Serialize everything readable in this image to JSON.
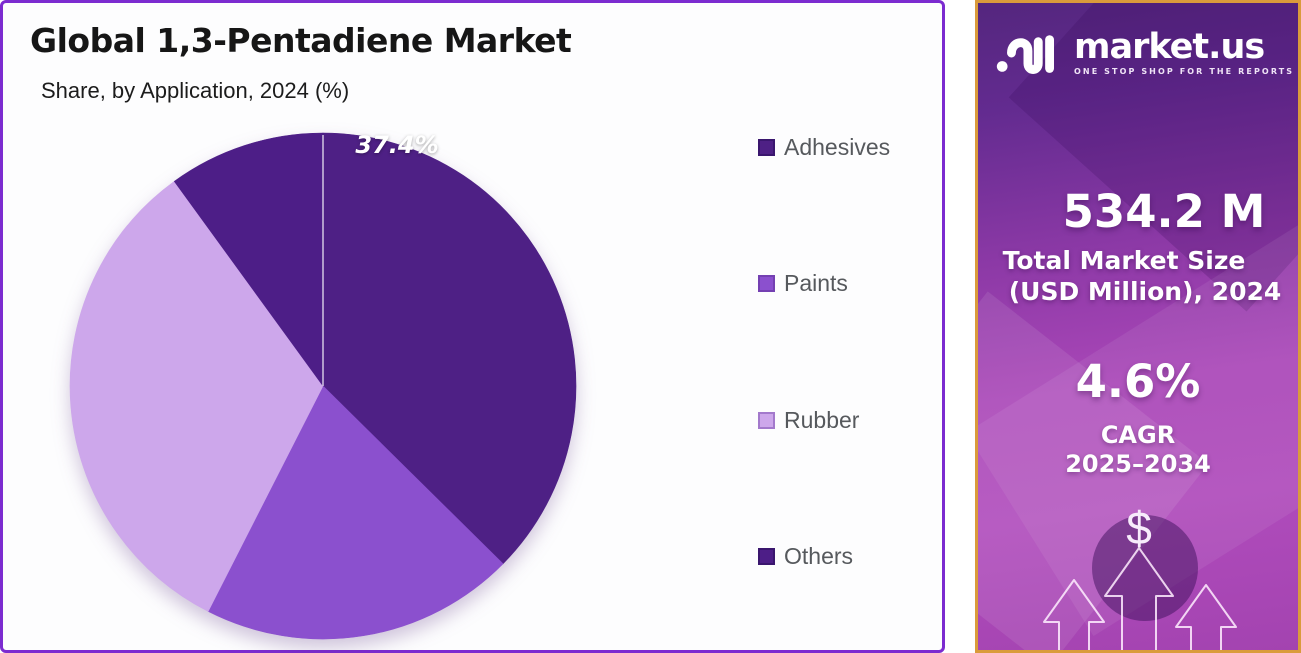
{
  "card": {
    "title": "Global 1,3-Pentadiene Market",
    "subtitle": "Share, by Application, 2024 (%)"
  },
  "chart_data": {
    "type": "pie",
    "title": "Global 1,3-Pentadiene Market",
    "subtitle": "Share, by Application, 2024 (%)",
    "categories": [
      "Adhesives",
      "Paints",
      "Rubber",
      "Others"
    ],
    "values": [
      37.4,
      20.1,
      32.5,
      10.0
    ],
    "unit": "%",
    "labels_shown": [
      "37.4%",
      "",
      "",
      ""
    ],
    "data_label": "37.4%",
    "colors": [
      "#4E2085",
      "#8B50CE",
      "#CDA7EB",
      "#4D1E87"
    ],
    "swatch_borders": [
      "#3A166E",
      "#7440B2",
      "#A379CC",
      "#3A166E"
    ],
    "start_angle_deg": 0,
    "direction": "clockwise",
    "legend_position": "right",
    "grid": "off"
  },
  "panel": {
    "brand": "market.us",
    "tagline": "ONE STOP SHOP FOR THE REPORTS",
    "market_size": {
      "value": "534.2 M",
      "label_line1": "Total Market Size",
      "label_line2": "(USD Million), 2024"
    },
    "cagr": {
      "value": "4.6%",
      "label_line1": "CAGR",
      "label_line2": "2025–2034"
    },
    "dollar_symbol": "$",
    "colors": {
      "border_gold": "#DA9B3B",
      "gradient_top": "#54267E",
      "gradient_bottom": "#A343B0"
    }
  },
  "colors": {
    "card_border": "#7C2BD0",
    "title_text": "#161616",
    "legend_text": "#56595D"
  }
}
